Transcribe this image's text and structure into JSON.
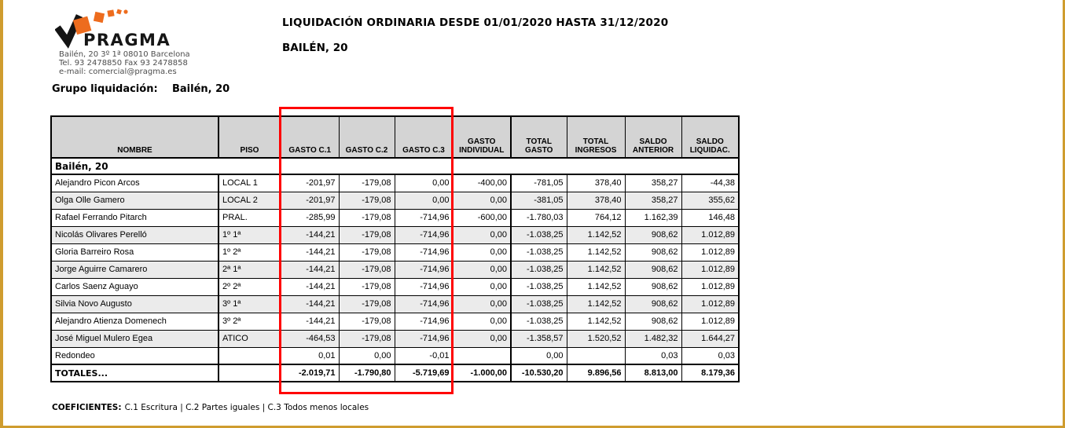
{
  "page": {
    "frame_border_color": "#CF9C2E",
    "background": "#FFFFFF"
  },
  "header": {
    "logo": {
      "brand": "PRAGMA",
      "orange": "#ED6C1E",
      "dark": "#161616",
      "address_lines": [
        "Bailén, 20 3º 1ª 08010 Barcelona",
        "Tel. 93 2478850 Fax 93 2478858",
        "e-mail: comercial@pragma.es"
      ]
    },
    "title": "LIQUIDACIÓN ORDINARIA DESDE 01/01/2020 HASTA 31/12/2020",
    "subtitle": "BAILÉN, 20"
  },
  "group": {
    "label": "Grupo liquidación:",
    "value": "Bailén, 20"
  },
  "table": {
    "highlight_color": "#FF0000",
    "highlighted_columns": [
      "GASTO C.1",
      "GASTO C.2",
      "GASTO C.3"
    ],
    "columns": [
      "NOMBRE",
      "PISO",
      "GASTO C.1",
      "GASTO C.2",
      "GASTO C.3",
      "GASTO INDIVIDUAL",
      "TOTAL GASTO",
      "TOTAL INGRESOS",
      "SALDO ANTERIOR",
      "SALDO LIQUIDAC."
    ],
    "section": "Bailén, 20",
    "rows": [
      {
        "cells": [
          "Alejandro Picon Arcos",
          "LOCAL 1",
          "-201,97",
          "-179,08",
          "0,00",
          "-400,00",
          "-781,05",
          "378,40",
          "358,27",
          "-44,38"
        ]
      },
      {
        "cells": [
          "Olga Olle Gamero",
          "LOCAL 2",
          "-201,97",
          "-179,08",
          "0,00",
          "0,00",
          "-381,05",
          "378,40",
          "358,27",
          "355,62"
        ]
      },
      {
        "cells": [
          "Rafael Ferrando Pitarch",
          "PRAL.",
          "-285,99",
          "-179,08",
          "-714,96",
          "-600,00",
          "-1.780,03",
          "764,12",
          "1.162,39",
          "146,48"
        ]
      },
      {
        "cells": [
          "Nicolás Olivares Perelló",
          "1º 1ª",
          "-144,21",
          "-179,08",
          "-714,96",
          "0,00",
          "-1.038,25",
          "1.142,52",
          "908,62",
          "1.012,89"
        ]
      },
      {
        "cells": [
          "Gloria Barreiro Rosa",
          "1º 2ª",
          "-144,21",
          "-179,08",
          "-714,96",
          "0,00",
          "-1.038,25",
          "1.142,52",
          "908,62",
          "1.012,89"
        ]
      },
      {
        "cells": [
          "Jorge Aguirre Camarero",
          "2ª 1ª",
          "-144,21",
          "-179,08",
          "-714,96",
          "0,00",
          "-1.038,25",
          "1.142,52",
          "908,62",
          "1.012,89"
        ]
      },
      {
        "cells": [
          "Carlos Saenz Aguayo",
          "2º 2ª",
          "-144,21",
          "-179,08",
          "-714,96",
          "0,00",
          "-1.038,25",
          "1.142,52",
          "908,62",
          "1.012,89"
        ]
      },
      {
        "cells": [
          "Silvia Novo Augusto",
          "3º 1ª",
          "-144,21",
          "-179,08",
          "-714,96",
          "0,00",
          "-1.038,25",
          "1.142,52",
          "908,62",
          "1.012,89"
        ]
      },
      {
        "cells": [
          "Alejandro Atienza Domenech",
          "3º 2ª",
          "-144,21",
          "-179,08",
          "-714,96",
          "0,00",
          "-1.038,25",
          "1.142,52",
          "908,62",
          "1.012,89"
        ]
      },
      {
        "cells": [
          "José Miguel Mulero Egea",
          "ATICO",
          "-464,53",
          "-179,08",
          "-714,96",
          "0,00",
          "-1.358,57",
          "1.520,52",
          "1.482,32",
          "1.644,27"
        ]
      }
    ],
    "redondeo": {
      "cells": [
        "Redondeo",
        "",
        "0,01",
        "0,00",
        "-0,01",
        "",
        "0,00",
        "",
        "0,03",
        "0,03"
      ]
    },
    "totals": {
      "cells": [
        "TOTALES...",
        "",
        "-2.019,71",
        "-1.790,80",
        "-5.719,69",
        "-1.000,00",
        "-10.530,20",
        "9.896,56",
        "8.813,00",
        "8.179,36"
      ]
    }
  },
  "footer": {
    "coeficientes_label": "COEFICIENTES:",
    "coeficientes_text": "C.1 Escritura   |   C.2 Partes iguales   |   C.3 Todos menos locales"
  }
}
